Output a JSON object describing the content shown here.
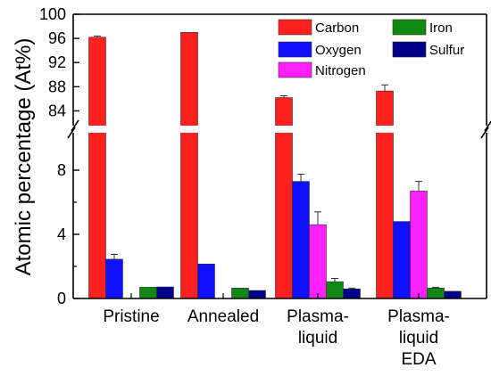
{
  "chart_data": {
    "type": "bar",
    "categories": [
      [
        "Pristine"
      ],
      [
        "Annealed"
      ],
      [
        "Plasma-",
        "liquid"
      ],
      [
        "Plasma-",
        "liquid",
        "EDA"
      ]
    ],
    "series": [
      {
        "name": "Carbon",
        "color": "#ff2020",
        "values": [
          96.2,
          97.0,
          86.2,
          87.3
        ],
        "errors": [
          0.2,
          0.0,
          0.3,
          1.0
        ]
      },
      {
        "name": "Oxygen",
        "color": "#1010ff",
        "values": [
          2.45,
          2.15,
          7.3,
          4.8
        ],
        "errors": [
          0.3,
          0.0,
          0.45,
          0.0
        ]
      },
      {
        "name": "Nitrogen",
        "color": "#ff20ff",
        "values": [
          0,
          0,
          4.6,
          6.7
        ],
        "errors": [
          0,
          0,
          0.8,
          0.6
        ]
      },
      {
        "name": "Iron",
        "color": "#118811",
        "values": [
          0.7,
          0.65,
          1.05,
          0.65
        ],
        "errors": [
          0.0,
          0.0,
          0.2,
          0.05
        ]
      },
      {
        "name": "Sulfur",
        "color": "#00008b",
        "values": [
          0.72,
          0.5,
          0.6,
          0.45
        ],
        "errors": [
          0.0,
          0.0,
          0.05,
          0.0
        ]
      }
    ],
    "ylabel": "Atomic percentage (At%)",
    "axis_break": true,
    "ylim_lower": [
      0,
      10
    ],
    "ylim_upper": [
      82,
      100
    ],
    "yticks_lower": [
      0,
      4,
      8
    ],
    "yticks_upper": [
      84,
      88,
      92,
      96,
      100
    ],
    "legend_position": "top-right",
    "grid": false
  }
}
